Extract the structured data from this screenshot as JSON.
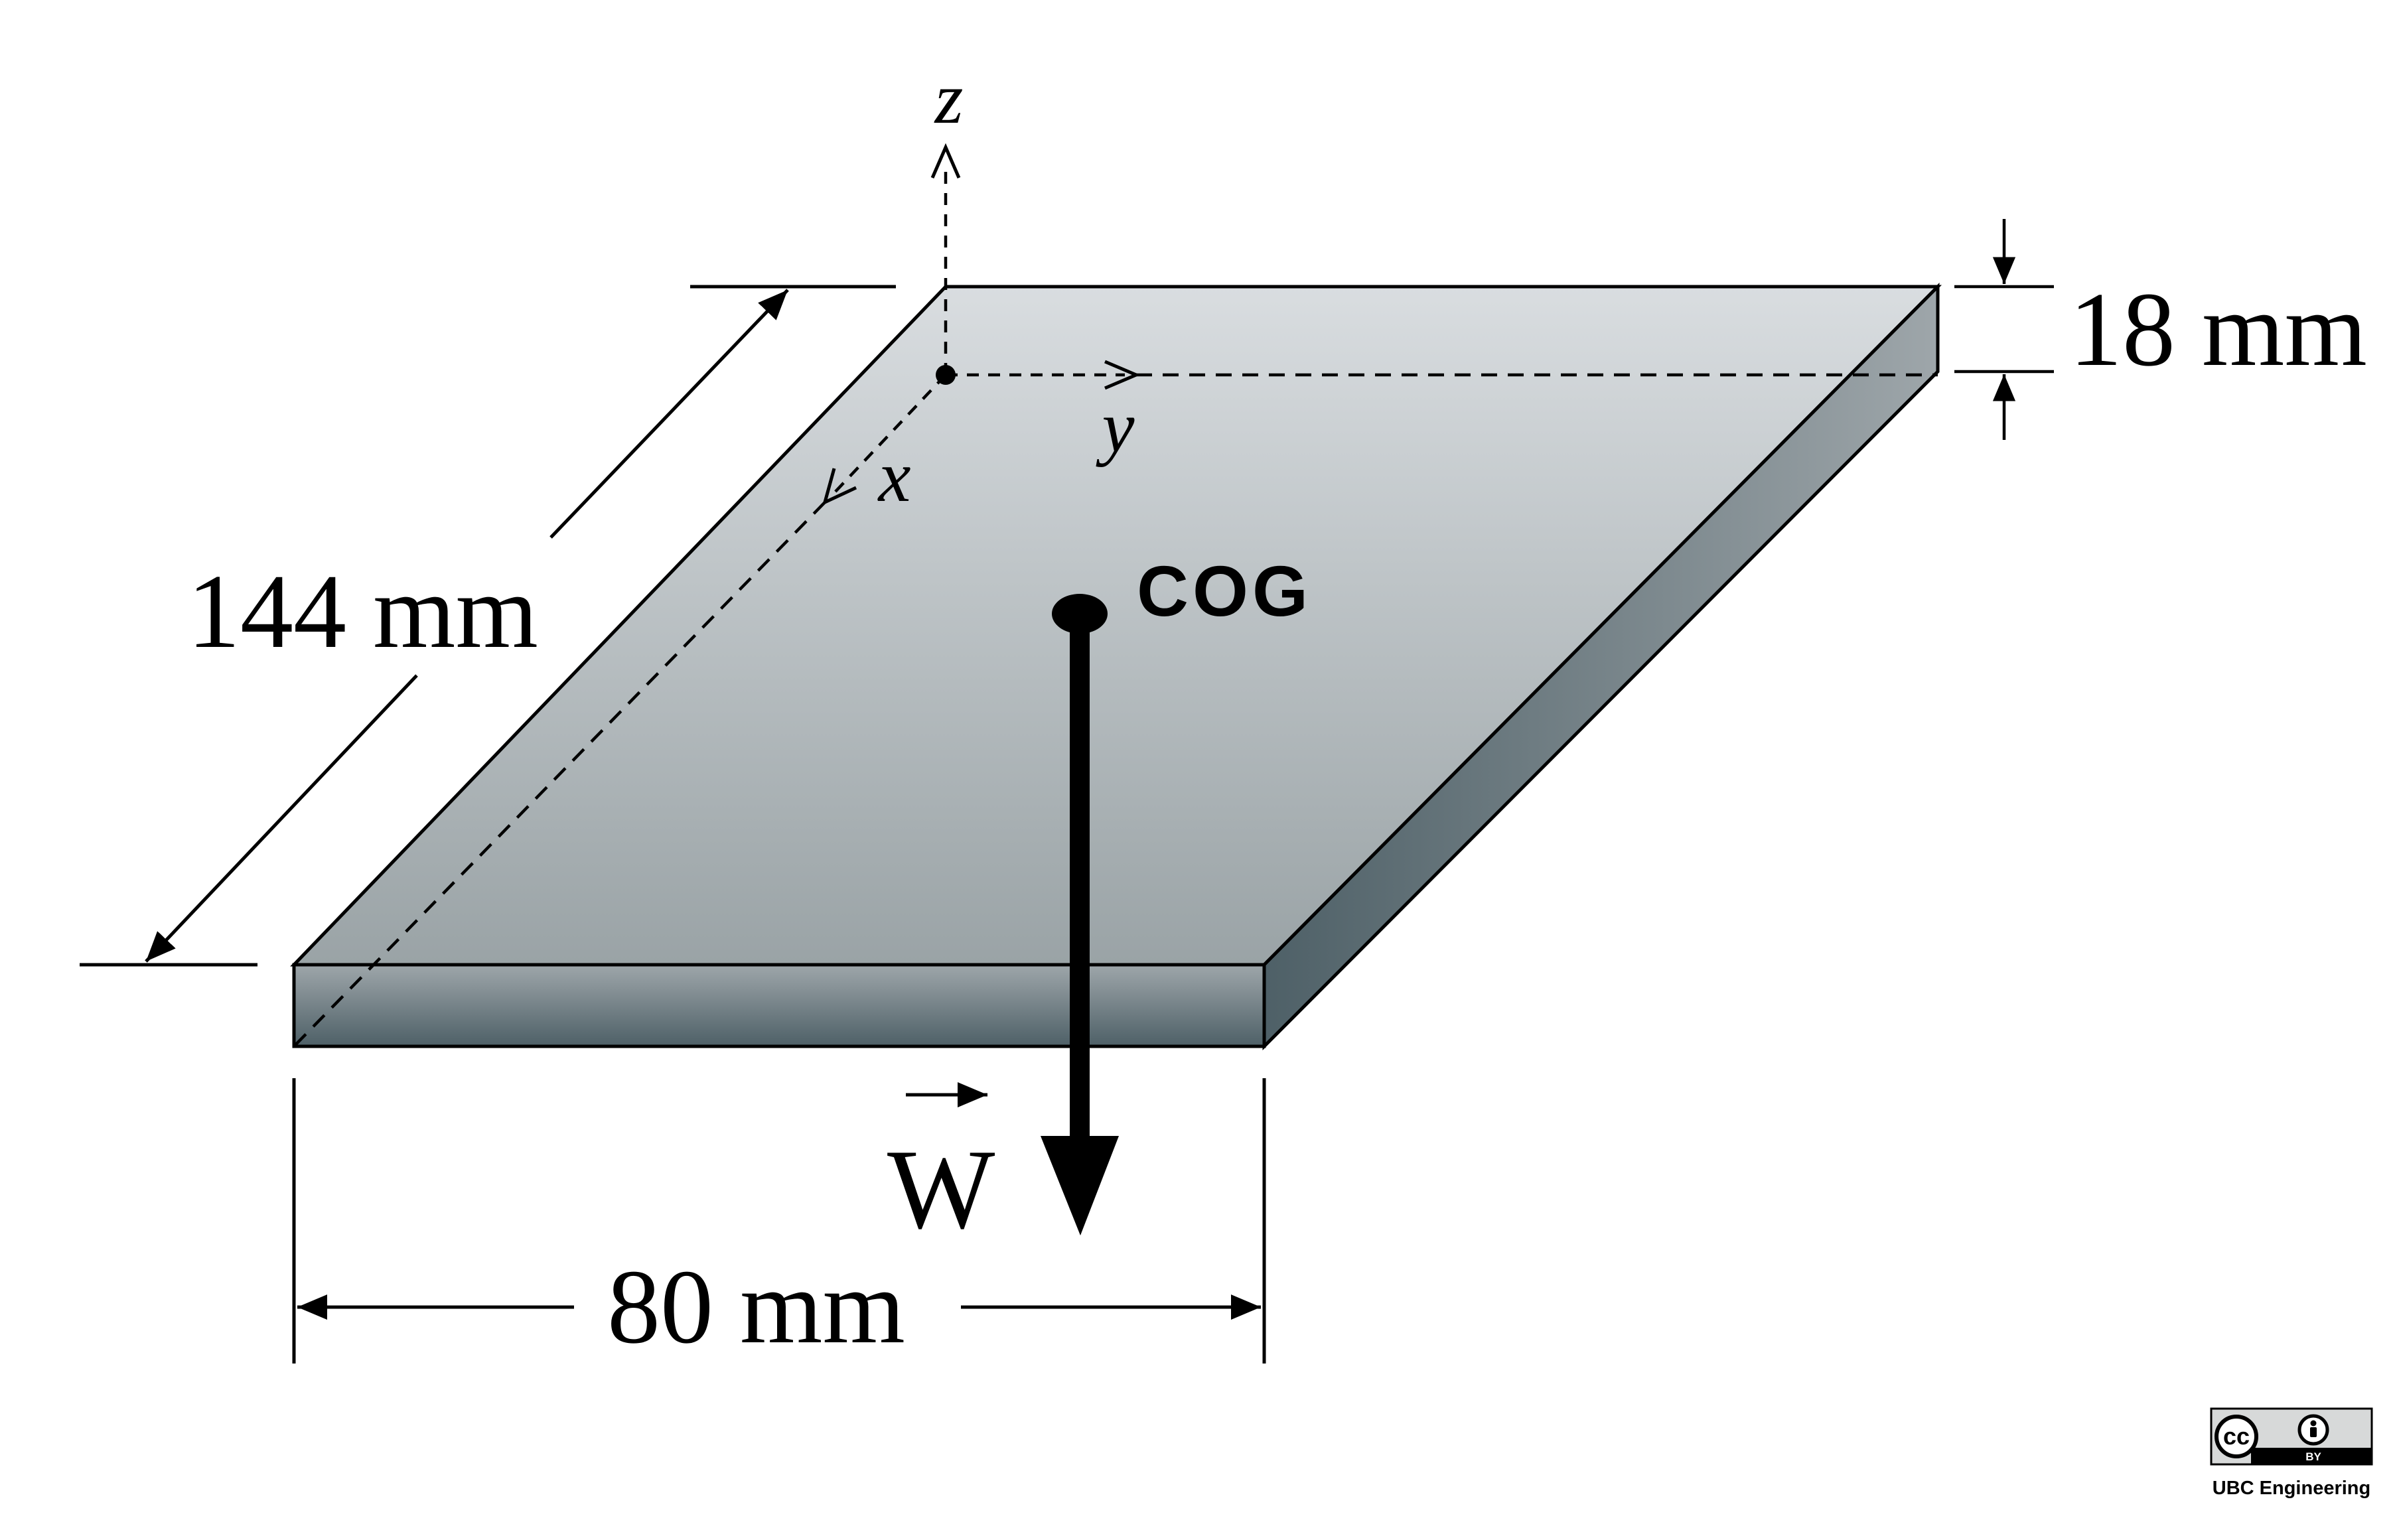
{
  "diagram": {
    "axes": {
      "z": "z",
      "y": "y",
      "x": "x"
    },
    "dimensions": {
      "length": "144 mm",
      "width": "80 mm",
      "thickness": "18 mm"
    },
    "cog_label": "COG",
    "force_label": "W",
    "colors": {
      "plate_top_light": "#d9dde0",
      "plate_top_dark": "#9aa3a6",
      "plate_edge_light": "#9ea6aa",
      "plate_edge_dark": "#4e6067"
    }
  },
  "license": {
    "badge_cc": "cc",
    "badge_by": "BY",
    "credit": "UBC Engineering"
  }
}
